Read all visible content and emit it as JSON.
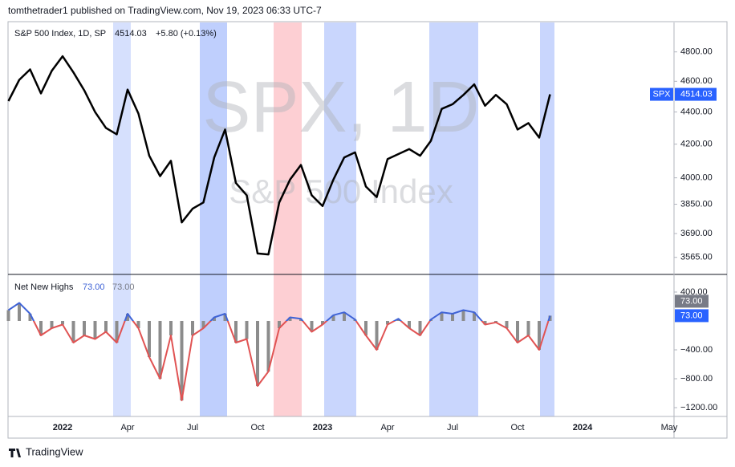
{
  "header": {
    "publisher": "tomthetrader1 published on TradingView.com, Nov 19, 2023 06:33 UTC-7"
  },
  "footer": {
    "brand": "TradingView"
  },
  "chart_data": [
    {
      "type": "line",
      "legend": {
        "symbol": "S&P 500 Index, 1D, SP",
        "price": "4514.03",
        "change": "+5.80 (+0.13%)"
      },
      "watermark": "SPX, 1D",
      "price_tag": {
        "symbol": "SPX",
        "value": "4514.03"
      },
      "categories": [
        null,
        null,
        null,
        null,
        null,
        "2022",
        null,
        null,
        null,
        null,
        null,
        "Apr",
        null,
        null,
        null,
        null,
        null,
        "Jul",
        null,
        null,
        null,
        null,
        null,
        "Oct",
        null,
        null,
        null,
        null,
        null,
        "2023",
        null,
        null,
        null,
        null,
        null,
        "Apr",
        null,
        null,
        null,
        null,
        null,
        "Jul",
        null,
        null,
        null,
        null,
        null,
        "Oct",
        null,
        null,
        null,
        null,
        null,
        "2024",
        null,
        null,
        null,
        null,
        null,
        null,
        null,
        "May"
      ],
      "series": [
        {
          "name": "S&P 500 Index",
          "color": "#000000",
          "values": [
            4470,
            4610,
            4680,
            4520,
            4670,
            4770,
            4660,
            4540,
            4400,
            4300,
            4260,
            4545,
            4390,
            4130,
            4010,
            4100,
            3750,
            3825,
            3860,
            4120,
            4290,
            3970,
            3900,
            3585,
            3580,
            3860,
            3990,
            4075,
            3900,
            3840,
            3990,
            4120,
            4150,
            3950,
            3890,
            4110,
            4140,
            4170,
            4130,
            4220,
            4420,
            4450,
            4510,
            4580,
            4440,
            4510,
            4450,
            4290,
            4330,
            4240,
            4514.03,
            null,
            null,
            null,
            null,
            null,
            null,
            null,
            null,
            null,
            null,
            null
          ]
        }
      ],
      "ylim": [
        3478,
        5009
      ],
      "log": true,
      "yticks": [
        {
          "value": 4800,
          "label": "4800.00"
        },
        {
          "value": 4600,
          "label": "4600.00"
        },
        {
          "value": 4400,
          "label": "4400.00"
        },
        {
          "value": 4200,
          "label": "4200.00"
        },
        {
          "value": 4000,
          "label": "4000.00"
        },
        {
          "value": 3850,
          "label": "3850.00"
        },
        {
          "value": 3690,
          "label": "3690.00"
        },
        {
          "value": 3565,
          "label": "3565.00"
        }
      ],
      "grid": false
    },
    {
      "type": "bar",
      "legend": {
        "value1": "73.00",
        "value2": "73.00"
      },
      "tags": [
        "73.00",
        "73.00"
      ],
      "categories": [
        null,
        null,
        null,
        null,
        null,
        "2022",
        null,
        null,
        null,
        null,
        null,
        "Apr",
        null,
        null,
        null,
        null,
        null,
        "Jul",
        null,
        null,
        null,
        null,
        null,
        "Oct",
        null,
        null,
        null,
        null,
        null,
        "2023",
        null,
        null,
        null,
        null,
        null,
        "Apr",
        null,
        null,
        null,
        null,
        null,
        "Jul",
        null,
        null,
        null,
        null,
        null,
        "Oct",
        null,
        null,
        null,
        null,
        null,
        "2024",
        null,
        null,
        null,
        null,
        null,
        null,
        null,
        "May"
      ],
      "series": [
        {
          "name": "Net New Highs",
          "color": "#8c8c8c",
          "up_color": "#3f63d6",
          "down_color": "#e05353",
          "values": [
            150,
            250,
            100,
            -200,
            -100,
            -50,
            -300,
            -200,
            -250,
            -150,
            -300,
            100,
            -100,
            -500,
            -800,
            -200,
            -1100,
            -200,
            -100,
            50,
            100,
            -300,
            -250,
            -900,
            -700,
            -100,
            50,
            30,
            -150,
            -50,
            80,
            120,
            20,
            -200,
            -400,
            -50,
            30,
            -100,
            -200,
            20,
            120,
            100,
            150,
            120,
            -50,
            -20,
            -100,
            -300,
            -200,
            -400,
            73,
            null,
            null,
            null,
            null,
            null,
            null,
            null,
            null,
            null,
            null,
            null
          ]
        }
      ],
      "ylim": [
        -1322,
        633
      ],
      "yticks": [
        {
          "value": 400,
          "label": "400.00"
        },
        {
          "value": -400,
          "label": "−400.00"
        },
        {
          "value": -800,
          "label": "−800.00"
        },
        {
          "value": -1200,
          "label": "−1200.00"
        }
      ],
      "grid": false
    }
  ]
}
